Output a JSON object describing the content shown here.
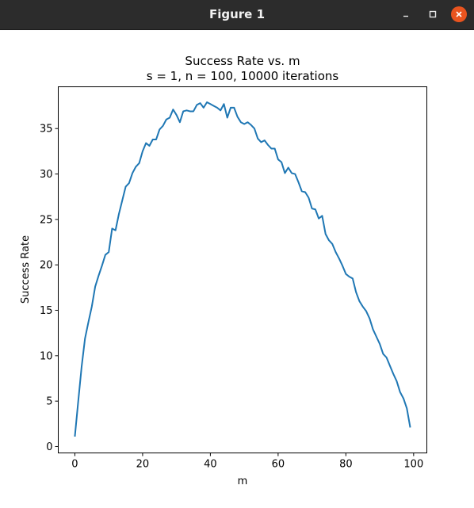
{
  "window": {
    "title": "Figure 1",
    "controls": [
      "minimize-icon",
      "maximize-icon",
      "close-icon"
    ],
    "close_color": "#e9541f"
  },
  "chart_data": {
    "type": "line",
    "title": "Success Rate vs. m",
    "subtitle": "s = 1, n = 100, 10000 iterations",
    "xlabel": "m",
    "ylabel": "Success Rate",
    "xlim": [
      -4.9,
      103.9
    ],
    "ylim": [
      -0.7,
      39.6
    ],
    "xticks": [
      0,
      20,
      40,
      60,
      80,
      100
    ],
    "yticks": [
      0,
      5,
      10,
      15,
      20,
      25,
      30,
      35
    ],
    "grid": false,
    "legend": "none",
    "series": [
      {
        "color": "#1f77b4",
        "x": [
          0,
          1,
          2,
          3,
          4,
          5,
          6,
          7,
          8,
          9,
          10,
          11,
          12,
          13,
          14,
          15,
          16,
          17,
          18,
          19,
          20,
          21,
          22,
          23,
          24,
          25,
          26,
          27,
          28,
          29,
          30,
          31,
          32,
          33,
          34,
          35,
          36,
          37,
          38,
          39,
          40,
          41,
          42,
          43,
          44,
          45,
          46,
          47,
          48,
          49,
          50,
          51,
          52,
          53,
          54,
          55,
          56,
          57,
          58,
          59,
          60,
          61,
          62,
          63,
          64,
          65,
          66,
          67,
          68,
          69,
          70,
          71,
          72,
          73,
          74,
          75,
          76,
          77,
          78,
          79,
          80,
          81,
          82,
          83,
          84,
          85,
          86,
          87,
          88,
          89,
          90,
          91,
          92,
          93,
          94,
          95,
          96,
          97,
          98,
          99
        ],
        "y": [
          1.1,
          5.0,
          8.8,
          11.9,
          13.7,
          15.4,
          17.6,
          18.8,
          19.9,
          21.1,
          21.4,
          24.0,
          23.8,
          25.6,
          27.1,
          28.6,
          29.0,
          30.1,
          30.8,
          31.2,
          32.5,
          33.4,
          33.1,
          33.8,
          33.8,
          34.9,
          35.3,
          36.0,
          36.2,
          37.1,
          36.5,
          35.7,
          36.9,
          37.0,
          36.9,
          36.9,
          37.6,
          37.8,
          37.3,
          37.9,
          37.7,
          37.5,
          37.3,
          37.0,
          37.7,
          36.2,
          37.3,
          37.3,
          36.3,
          35.7,
          35.5,
          35.7,
          35.4,
          35.0,
          33.9,
          33.5,
          33.7,
          33.2,
          32.8,
          32.8,
          31.6,
          31.3,
          30.1,
          30.7,
          30.1,
          30.0,
          29.1,
          28.1,
          28.0,
          27.4,
          26.2,
          26.1,
          25.1,
          25.4,
          23.4,
          22.7,
          22.3,
          21.4,
          20.7,
          19.9,
          19.0,
          18.7,
          18.5,
          17.0,
          16.0,
          15.4,
          14.9,
          14.1,
          12.9,
          12.1,
          11.3,
          10.2,
          9.8,
          8.9,
          8.0,
          7.2,
          6.0,
          5.3,
          4.2,
          2.1
        ]
      }
    ]
  }
}
